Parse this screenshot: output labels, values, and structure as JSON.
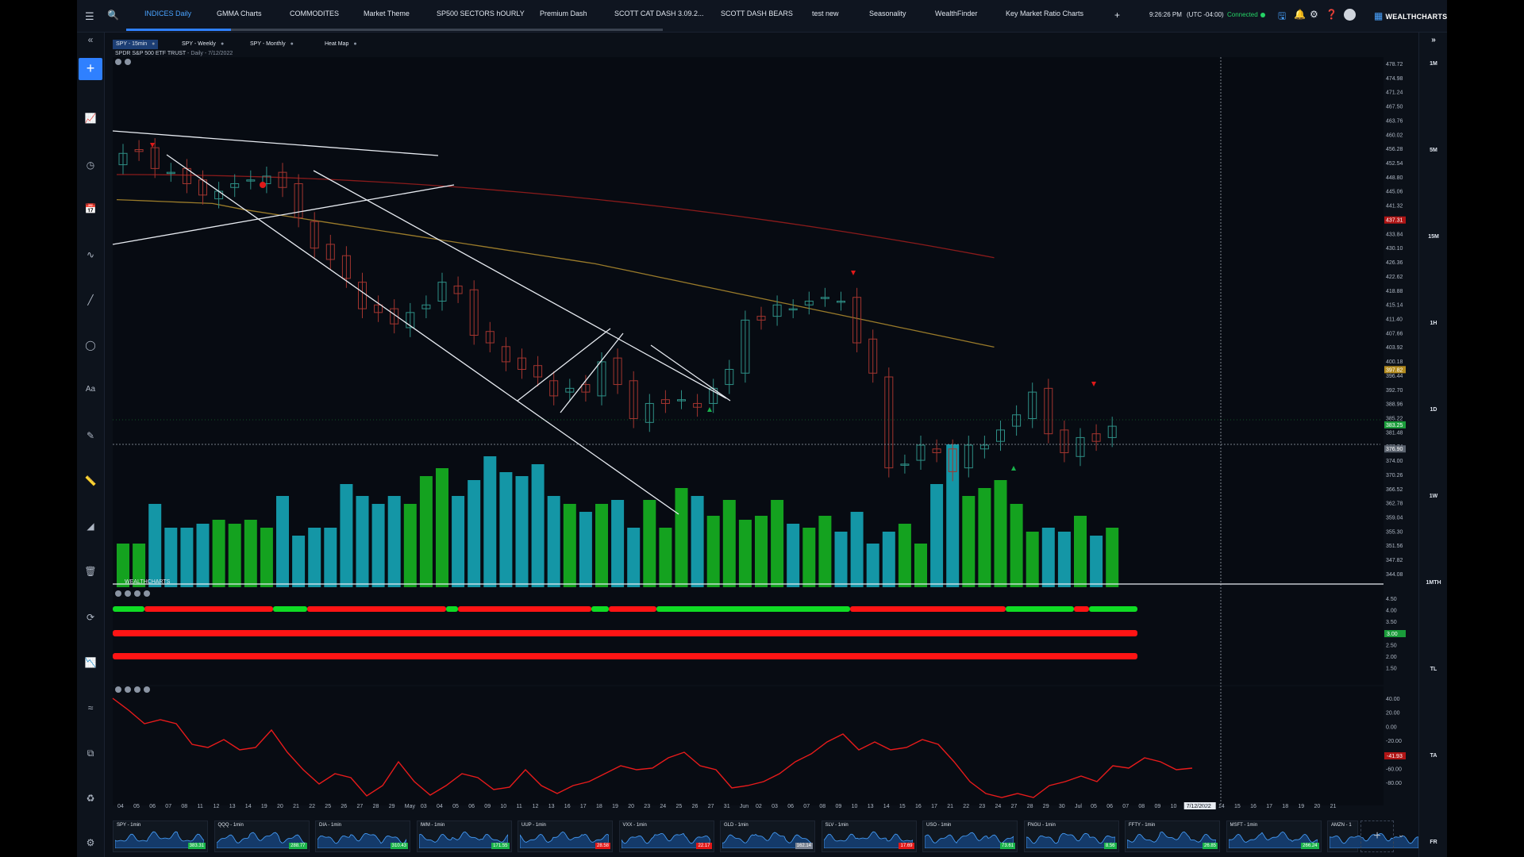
{
  "nav": {
    "tabs": [
      "INDICES Daily",
      "GMMA Charts",
      "COMMODITES",
      "Market Theme",
      "SP500 SECTORS hOURLY",
      "Premium Dash",
      "SCOTT CAT DASH 3.09.2...",
      "SCOTT DASH BEARS",
      "test new",
      "Seasonality",
      "WealthFinder",
      "Key Market Ratio Charts"
    ],
    "active_tab": 0,
    "add_tab": "+",
    "time": "9:26:26 PM",
    "timezone": "(UTC -04:00)",
    "status": "Connected",
    "brand": "WEALTHCHARTS"
  },
  "chart_tabs": [
    {
      "label": "SPY - 15min"
    },
    {
      "label": "SPY - Weekly"
    },
    {
      "label": "SPY - Monthly"
    },
    {
      "label": "Heat Map"
    }
  ],
  "symbol": {
    "name": "SPDR S&P 500 ETF TRUST",
    "detail": " - Daily - 7/12/2022"
  },
  "watermark": "WEALTHCHARTS",
  "timeframes": [
    "1M",
    "5M",
    "15M",
    "1H",
    "1D",
    "1W",
    "1MTH",
    "TL",
    "TA",
    "FR"
  ],
  "price_axis": [
    "478.72",
    "474.98",
    "471.24",
    "467.50",
    "463.76",
    "460.02",
    "456.28",
    "452.54",
    "448.80",
    "445.06",
    "441.32",
    "437.58",
    "433.84",
    "430.10",
    "426.36",
    "422.62",
    "418.88",
    "415.14",
    "411.40",
    "407.66",
    "403.92",
    "400.18",
    "396.44",
    "392.70",
    "388.96",
    "385.22",
    "381.48",
    "377.74",
    "374.00",
    "370.26",
    "366.52",
    "362.78",
    "359.04",
    "355.30",
    "351.56",
    "347.82",
    "344.08"
  ],
  "price_tags": {
    "red_ma": "437.31",
    "gold_ma": "397.82",
    "last": "383.25",
    "cursor": "376.90"
  },
  "panel2_axis": [
    "4.50",
    "4.00",
    "3.50",
    "3.00",
    "2.50",
    "2.00",
    "1.50"
  ],
  "panel2_tag": "3.00",
  "panel3_axis": [
    "40.00",
    "20.00",
    "0.00",
    "-20.00",
    "-40.00",
    "-60.00",
    "-80.00"
  ],
  "panel3_tag": "-41.93",
  "date_labels": [
    "04",
    "05",
    "06",
    "07",
    "08",
    "11",
    "12",
    "13",
    "14",
    "19",
    "20",
    "21",
    "22",
    "25",
    "26",
    "27",
    "28",
    "29",
    "May",
    "03",
    "04",
    "05",
    "06",
    "09",
    "10",
    "11",
    "12",
    "13",
    "16",
    "17",
    "18",
    "19",
    "20",
    "23",
    "24",
    "25",
    "26",
    "27",
    "31",
    "Jun",
    "02",
    "03",
    "06",
    "07",
    "08",
    "09",
    "10",
    "13",
    "14",
    "15",
    "16",
    "17",
    "21",
    "22",
    "23",
    "24",
    "27",
    "28",
    "29",
    "30",
    "Jul",
    "05",
    "06",
    "07",
    "08",
    "09",
    "10",
    "7/12/2022",
    "13",
    "14",
    "15",
    "16",
    "17",
    "18",
    "19",
    "20",
    "21"
  ],
  "chart_data": {
    "type": "candlestick",
    "closes": [
      455,
      455.5,
      451,
      450,
      447,
      444,
      445,
      447,
      448,
      449,
      446,
      438,
      430,
      427,
      422,
      414,
      413,
      410,
      413,
      415,
      421,
      418,
      407,
      405,
      400,
      398,
      396,
      391,
      393,
      392,
      400,
      394,
      385,
      389,
      389,
      390,
      388,
      393,
      398,
      411,
      411,
      415,
      414,
      416,
      417,
      416,
      405,
      397,
      372,
      373,
      378,
      376,
      371,
      378,
      378,
      382,
      386,
      392,
      381,
      376,
      380,
      379,
      383
    ]
  },
  "tiles": [
    {
      "symbol": "SPY - 1min",
      "value": "383.31",
      "color": "#1ab34a"
    },
    {
      "symbol": "QQQ - 1min",
      "value": "288.77",
      "color": "#1ab34a"
    },
    {
      "symbol": "DIA - 1min",
      "value": "310.43",
      "color": "#1ab34a"
    },
    {
      "symbol": "IWM - 1min",
      "value": "171.55",
      "color": "#1ab34a"
    },
    {
      "symbol": "UUP - 1min",
      "value": "28.58",
      "color": "#e01919"
    },
    {
      "symbol": "VXX - 1min",
      "value": "22.17",
      "color": "#e01919"
    },
    {
      "symbol": "GLD - 1min",
      "value": "162.14",
      "color": "#7d8594"
    },
    {
      "symbol": "SLV - 1min",
      "value": "17.69",
      "color": "#e01919"
    },
    {
      "symbol": "USO - 1min",
      "value": "73.61",
      "color": "#1ab34a"
    },
    {
      "symbol": "FNGU - 1min",
      "value": "8.56",
      "color": "#1ab34a"
    },
    {
      "symbol": "FFTY - 1min",
      "value": "26.85",
      "color": "#1ab34a"
    },
    {
      "symbol": "MSFT - 1min",
      "value": "266.24",
      "color": "#1ab34a"
    },
    {
      "symbol": "AMZN - 1",
      "value": "",
      "color": "#1ab34a"
    }
  ]
}
